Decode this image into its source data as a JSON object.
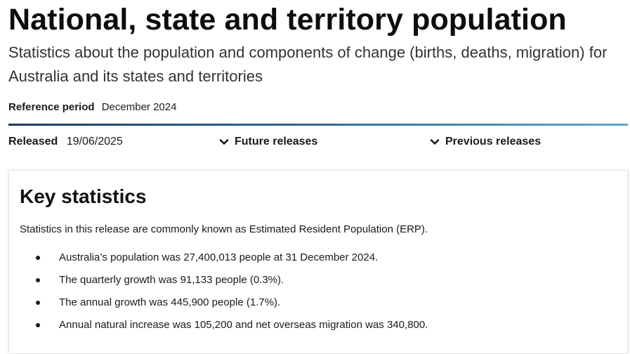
{
  "header": {
    "title": "National, state and territory population",
    "subtitle": "Statistics about the population and components of change (births, deaths, migration) for Australia and its states and territories",
    "reference_period_label": "Reference period",
    "reference_period_value": "December 2024"
  },
  "release": {
    "released_label": "Released",
    "released_date": "19/06/2025",
    "future_label": "Future releases",
    "previous_label": "Previous releases"
  },
  "key_statistics": {
    "title": "Key statistics",
    "intro": "Statistics in this release are commonly known as Estimated Resident Population (ERP).",
    "items": [
      "Australia’s population was 27,400,013 people at 31 December 2024.",
      "The quarterly growth was 91,133 people (0.3%).",
      "The annual growth was 445,900 people (1.7%).",
      "Annual natural increase was 105,200 and net overseas migration was 340,800."
    ]
  },
  "colors": {
    "divider_start": "#1f3b5c",
    "divider_end": "#5aa9c5",
    "text": "#1a1a1a"
  },
  "icons": {
    "toggle_icon": "chevron-down-icon"
  }
}
